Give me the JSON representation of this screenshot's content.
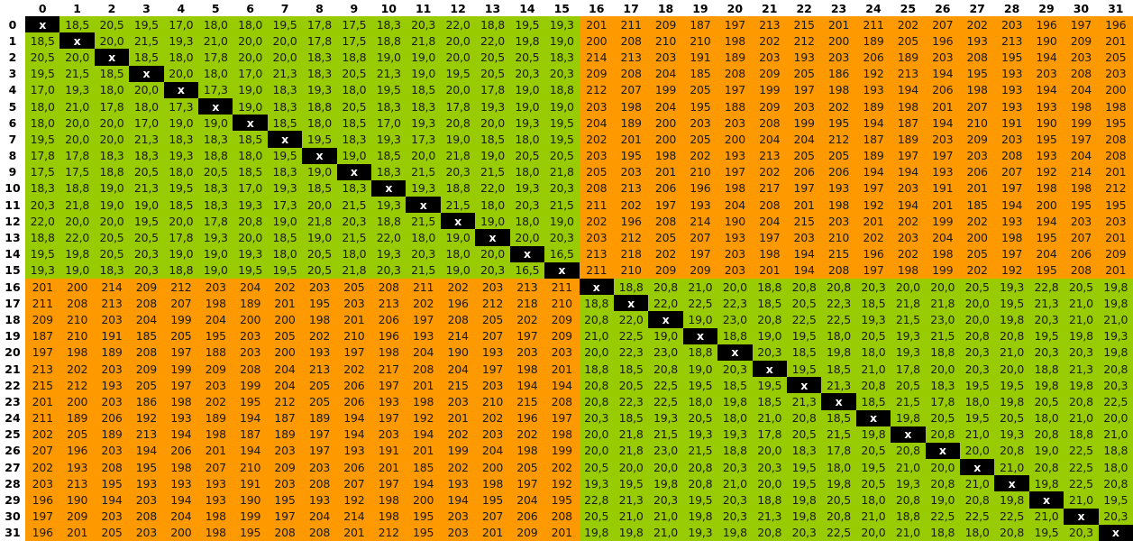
{
  "colors": {
    "same_block": "#99cc00",
    "cross_block": "#ff9900",
    "diagonal": "#000000"
  },
  "diagonal_marker": "x",
  "column_headers": [
    "0",
    "1",
    "2",
    "3",
    "4",
    "5",
    "6",
    "7",
    "8",
    "9",
    "10",
    "11",
    "12",
    "13",
    "14",
    "15",
    "16",
    "17",
    "18",
    "19",
    "20",
    "21",
    "22",
    "23",
    "24",
    "25",
    "26",
    "27",
    "28",
    "29",
    "30",
    "31"
  ],
  "row_headers": [
    "0",
    "1",
    "2",
    "3",
    "4",
    "5",
    "6",
    "7",
    "8",
    "9",
    "10",
    "11",
    "12",
    "13",
    "14",
    "15",
    "16",
    "17",
    "18",
    "19",
    "20",
    "21",
    "22",
    "23",
    "24",
    "25",
    "26",
    "27",
    "28",
    "29",
    "30",
    "31"
  ],
  "rows": [
    [
      "x",
      "18,5",
      "20,5",
      "19,5",
      "17,0",
      "18,0",
      "18,0",
      "19,5",
      "17,8",
      "17,5",
      "18,3",
      "20,3",
      "22,0",
      "18,8",
      "19,5",
      "19,3",
      "201",
      "211",
      "209",
      "187",
      "197",
      "213",
      "215",
      "201",
      "211",
      "202",
      "207",
      "202",
      "203",
      "196",
      "197",
      "196"
    ],
    [
      "18,5",
      "x",
      "20,0",
      "21,5",
      "19,3",
      "21,0",
      "20,0",
      "20,0",
      "17,8",
      "17,5",
      "18,8",
      "21,8",
      "20,0",
      "22,0",
      "19,8",
      "19,0",
      "200",
      "208",
      "210",
      "210",
      "198",
      "202",
      "212",
      "200",
      "189",
      "205",
      "196",
      "193",
      "213",
      "190",
      "209",
      "201"
    ],
    [
      "20,5",
      "20,0",
      "x",
      "18,5",
      "18,0",
      "17,8",
      "20,0",
      "20,0",
      "18,3",
      "18,8",
      "19,0",
      "19,0",
      "20,0",
      "20,5",
      "20,5",
      "18,3",
      "214",
      "213",
      "203",
      "191",
      "189",
      "203",
      "193",
      "203",
      "206",
      "189",
      "203",
      "208",
      "195",
      "194",
      "203",
      "205"
    ],
    [
      "19,5",
      "21,5",
      "18,5",
      "x",
      "20,0",
      "18,0",
      "17,0",
      "21,3",
      "18,3",
      "20,5",
      "21,3",
      "19,0",
      "19,5",
      "20,5",
      "20,3",
      "20,3",
      "209",
      "208",
      "204",
      "185",
      "208",
      "209",
      "205",
      "186",
      "192",
      "213",
      "194",
      "195",
      "193",
      "203",
      "208",
      "203"
    ],
    [
      "17,0",
      "19,3",
      "18,0",
      "20,0",
      "x",
      "17,3",
      "19,0",
      "18,3",
      "19,3",
      "18,0",
      "19,5",
      "18,5",
      "20,0",
      "17,8",
      "19,0",
      "18,8",
      "212",
      "207",
      "199",
      "205",
      "197",
      "199",
      "197",
      "198",
      "193",
      "194",
      "206",
      "198",
      "193",
      "194",
      "204",
      "200"
    ],
    [
      "18,0",
      "21,0",
      "17,8",
      "18,0",
      "17,3",
      "x",
      "19,0",
      "18,3",
      "18,8",
      "20,5",
      "18,3",
      "18,3",
      "17,8",
      "19,3",
      "19,0",
      "19,0",
      "203",
      "198",
      "204",
      "195",
      "188",
      "209",
      "203",
      "202",
      "189",
      "198",
      "201",
      "207",
      "193",
      "193",
      "198",
      "198"
    ],
    [
      "18,0",
      "20,0",
      "20,0",
      "17,0",
      "19,0",
      "19,0",
      "x",
      "18,5",
      "18,0",
      "18,5",
      "17,0",
      "19,3",
      "20,8",
      "20,0",
      "19,3",
      "19,5",
      "204",
      "189",
      "200",
      "203",
      "203",
      "208",
      "199",
      "195",
      "194",
      "187",
      "194",
      "210",
      "191",
      "190",
      "199",
      "195"
    ],
    [
      "19,5",
      "20,0",
      "20,0",
      "21,3",
      "18,3",
      "18,3",
      "18,5",
      "x",
      "19,5",
      "18,3",
      "19,3",
      "17,3",
      "19,0",
      "18,5",
      "18,0",
      "19,5",
      "202",
      "201",
      "200",
      "205",
      "200",
      "204",
      "204",
      "212",
      "187",
      "189",
      "203",
      "209",
      "203",
      "195",
      "197",
      "208"
    ],
    [
      "17,8",
      "17,8",
      "18,3",
      "18,3",
      "19,3",
      "18,8",
      "18,0",
      "19,5",
      "x",
      "19,0",
      "18,5",
      "20,0",
      "21,8",
      "19,0",
      "20,5",
      "20,5",
      "203",
      "195",
      "198",
      "202",
      "193",
      "213",
      "205",
      "205",
      "189",
      "197",
      "197",
      "203",
      "208",
      "193",
      "204",
      "208"
    ],
    [
      "17,5",
      "17,5",
      "18,8",
      "20,5",
      "18,0",
      "20,5",
      "18,5",
      "18,3",
      "19,0",
      "x",
      "18,3",
      "21,5",
      "20,3",
      "21,5",
      "18,0",
      "21,8",
      "205",
      "203",
      "201",
      "210",
      "197",
      "202",
      "206",
      "206",
      "194",
      "194",
      "193",
      "206",
      "207",
      "192",
      "214",
      "201"
    ],
    [
      "18,3",
      "18,8",
      "19,0",
      "21,3",
      "19,5",
      "18,3",
      "17,0",
      "19,3",
      "18,5",
      "18,3",
      "x",
      "19,3",
      "18,8",
      "22,0",
      "19,3",
      "20,3",
      "208",
      "213",
      "206",
      "196",
      "198",
      "217",
      "197",
      "193",
      "197",
      "203",
      "191",
      "201",
      "197",
      "198",
      "198",
      "212"
    ],
    [
      "20,3",
      "21,8",
      "19,0",
      "19,0",
      "18,5",
      "18,3",
      "19,3",
      "17,3",
      "20,0",
      "21,5",
      "19,3",
      "x",
      "21,5",
      "18,0",
      "20,3",
      "21,5",
      "211",
      "202",
      "197",
      "193",
      "204",
      "208",
      "201",
      "198",
      "192",
      "194",
      "201",
      "185",
      "194",
      "200",
      "195",
      "195"
    ],
    [
      "22,0",
      "20,0",
      "20,0",
      "19,5",
      "20,0",
      "17,8",
      "20,8",
      "19,0",
      "21,8",
      "20,3",
      "18,8",
      "21,5",
      "x",
      "19,0",
      "18,0",
      "19,0",
      "202",
      "196",
      "208",
      "214",
      "190",
      "204",
      "215",
      "203",
      "201",
      "202",
      "199",
      "202",
      "193",
      "194",
      "203",
      "203"
    ],
    [
      "18,8",
      "22,0",
      "20,5",
      "20,5",
      "17,8",
      "19,3",
      "20,0",
      "18,5",
      "19,0",
      "21,5",
      "22,0",
      "18,0",
      "19,0",
      "x",
      "20,0",
      "20,3",
      "203",
      "212",
      "205",
      "207",
      "193",
      "197",
      "203",
      "210",
      "202",
      "203",
      "204",
      "200",
      "198",
      "195",
      "207",
      "201"
    ],
    [
      "19,5",
      "19,8",
      "20,5",
      "20,3",
      "19,0",
      "19,0",
      "19,3",
      "18,0",
      "20,5",
      "18,0",
      "19,3",
      "20,3",
      "18,0",
      "20,0",
      "x",
      "16,5",
      "213",
      "218",
      "202",
      "197",
      "203",
      "198",
      "194",
      "215",
      "196",
      "202",
      "198",
      "205",
      "197",
      "204",
      "206",
      "209"
    ],
    [
      "19,3",
      "19,0",
      "18,3",
      "20,3",
      "18,8",
      "19,0",
      "19,5",
      "19,5",
      "20,5",
      "21,8",
      "20,3",
      "21,5",
      "19,0",
      "20,3",
      "16,5",
      "x",
      "211",
      "210",
      "209",
      "209",
      "203",
      "201",
      "194",
      "208",
      "197",
      "198",
      "199",
      "202",
      "192",
      "195",
      "208",
      "201"
    ],
    [
      "201",
      "200",
      "214",
      "209",
      "212",
      "203",
      "204",
      "202",
      "203",
      "205",
      "208",
      "211",
      "202",
      "203",
      "213",
      "211",
      "x",
      "18,8",
      "20,8",
      "21,0",
      "20,0",
      "18,8",
      "20,8",
      "20,8",
      "20,3",
      "20,0",
      "20,0",
      "20,5",
      "19,3",
      "22,8",
      "20,5",
      "19,8"
    ],
    [
      "211",
      "208",
      "213",
      "208",
      "207",
      "198",
      "189",
      "201",
      "195",
      "203",
      "213",
      "202",
      "196",
      "212",
      "218",
      "210",
      "18,8",
      "x",
      "22,0",
      "22,5",
      "22,3",
      "18,5",
      "20,5",
      "22,3",
      "18,5",
      "21,8",
      "21,8",
      "20,0",
      "19,5",
      "21,3",
      "21,0",
      "19,8"
    ],
    [
      "209",
      "210",
      "203",
      "204",
      "199",
      "204",
      "200",
      "200",
      "198",
      "201",
      "206",
      "197",
      "208",
      "205",
      "202",
      "209",
      "20,8",
      "22,0",
      "x",
      "19,0",
      "23,0",
      "20,8",
      "22,5",
      "22,5",
      "19,3",
      "21,5",
      "23,0",
      "20,0",
      "19,8",
      "20,3",
      "21,0",
      "21,0"
    ],
    [
      "187",
      "210",
      "191",
      "185",
      "205",
      "195",
      "203",
      "205",
      "202",
      "210",
      "196",
      "193",
      "214",
      "207",
      "197",
      "209",
      "21,0",
      "22,5",
      "19,0",
      "x",
      "18,8",
      "19,0",
      "19,5",
      "18,0",
      "20,5",
      "19,3",
      "21,5",
      "20,8",
      "20,8",
      "19,5",
      "19,8",
      "19,3"
    ],
    [
      "197",
      "198",
      "189",
      "208",
      "197",
      "188",
      "203",
      "200",
      "193",
      "197",
      "198",
      "204",
      "190",
      "193",
      "203",
      "203",
      "20,0",
      "22,3",
      "23,0",
      "18,8",
      "x",
      "20,3",
      "18,5",
      "19,8",
      "18,0",
      "19,3",
      "18,8",
      "20,3",
      "21,0",
      "20,3",
      "20,3",
      "19,8"
    ],
    [
      "213",
      "202",
      "203",
      "209",
      "199",
      "209",
      "208",
      "204",
      "213",
      "202",
      "217",
      "208",
      "204",
      "197",
      "198",
      "201",
      "18,8",
      "18,5",
      "20,8",
      "19,0",
      "20,3",
      "x",
      "19,5",
      "18,5",
      "21,0",
      "17,8",
      "20,0",
      "20,3",
      "20,0",
      "18,8",
      "21,3",
      "20,8"
    ],
    [
      "215",
      "212",
      "193",
      "205",
      "197",
      "203",
      "199",
      "204",
      "205",
      "206",
      "197",
      "201",
      "215",
      "203",
      "194",
      "194",
      "20,8",
      "20,5",
      "22,5",
      "19,5",
      "18,5",
      "19,5",
      "x",
      "21,3",
      "20,8",
      "20,5",
      "18,3",
      "19,5",
      "19,5",
      "19,8",
      "19,8",
      "20,3"
    ],
    [
      "201",
      "200",
      "203",
      "186",
      "198",
      "202",
      "195",
      "212",
      "205",
      "206",
      "193",
      "198",
      "203",
      "210",
      "215",
      "208",
      "20,8",
      "22,3",
      "22,5",
      "18,0",
      "19,8",
      "18,5",
      "21,3",
      "x",
      "18,5",
      "21,5",
      "17,8",
      "18,0",
      "19,8",
      "20,5",
      "20,8",
      "22,5"
    ],
    [
      "211",
      "189",
      "206",
      "192",
      "193",
      "189",
      "194",
      "187",
      "189",
      "194",
      "197",
      "192",
      "201",
      "202",
      "196",
      "197",
      "20,3",
      "18,5",
      "19,3",
      "20,5",
      "18,0",
      "21,0",
      "20,8",
      "18,5",
      "x",
      "19,8",
      "20,5",
      "19,5",
      "20,5",
      "18,0",
      "21,0",
      "20,0"
    ],
    [
      "202",
      "205",
      "189",
      "213",
      "194",
      "198",
      "187",
      "189",
      "197",
      "194",
      "203",
      "194",
      "202",
      "203",
      "202",
      "198",
      "20,0",
      "21,8",
      "21,5",
      "19,3",
      "19,3",
      "17,8",
      "20,5",
      "21,5",
      "19,8",
      "x",
      "20,8",
      "21,0",
      "19,3",
      "20,8",
      "18,8",
      "21,0"
    ],
    [
      "207",
      "196",
      "203",
      "194",
      "206",
      "201",
      "194",
      "203",
      "197",
      "193",
      "191",
      "201",
      "199",
      "204",
      "198",
      "199",
      "20,0",
      "21,8",
      "23,0",
      "21,5",
      "18,8",
      "20,0",
      "18,3",
      "17,8",
      "20,5",
      "20,8",
      "x",
      "20,0",
      "20,8",
      "19,0",
      "22,5",
      "18,8"
    ],
    [
      "202",
      "193",
      "208",
      "195",
      "198",
      "207",
      "210",
      "209",
      "203",
      "206",
      "201",
      "185",
      "202",
      "200",
      "205",
      "202",
      "20,5",
      "20,0",
      "20,0",
      "20,8",
      "20,3",
      "20,3",
      "19,5",
      "18,0",
      "19,5",
      "21,0",
      "20,0",
      "x",
      "21,0",
      "20,8",
      "22,5",
      "18,0"
    ],
    [
      "203",
      "213",
      "195",
      "193",
      "193",
      "193",
      "191",
      "203",
      "208",
      "207",
      "197",
      "194",
      "193",
      "198",
      "197",
      "192",
      "19,3",
      "19,5",
      "19,8",
      "20,8",
      "21,0",
      "20,0",
      "19,5",
      "19,8",
      "20,5",
      "19,3",
      "20,8",
      "21,0",
      "x",
      "19,8",
      "22,5",
      "20,8"
    ],
    [
      "196",
      "190",
      "194",
      "203",
      "194",
      "193",
      "190",
      "195",
      "193",
      "192",
      "198",
      "200",
      "194",
      "195",
      "204",
      "195",
      "22,8",
      "21,3",
      "20,3",
      "19,5",
      "20,3",
      "18,8",
      "19,8",
      "20,5",
      "18,0",
      "20,8",
      "19,0",
      "20,8",
      "19,8",
      "x",
      "21,0",
      "19,5"
    ],
    [
      "197",
      "209",
      "203",
      "208",
      "204",
      "198",
      "199",
      "197",
      "204",
      "214",
      "198",
      "195",
      "203",
      "207",
      "206",
      "208",
      "20,5",
      "21,0",
      "21,0",
      "19,8",
      "20,3",
      "21,3",
      "19,8",
      "20,8",
      "21,0",
      "18,8",
      "22,5",
      "22,5",
      "22,5",
      "21,0",
      "x",
      "20,3"
    ],
    [
      "196",
      "201",
      "205",
      "203",
      "200",
      "198",
      "195",
      "208",
      "208",
      "201",
      "212",
      "195",
      "203",
      "201",
      "209",
      "201",
      "19,8",
      "19,8",
      "21,0",
      "19,3",
      "19,8",
      "20,8",
      "20,3",
      "22,5",
      "20,0",
      "21,0",
      "18,8",
      "18,0",
      "20,8",
      "19,5",
      "20,3",
      "x"
    ]
  ]
}
